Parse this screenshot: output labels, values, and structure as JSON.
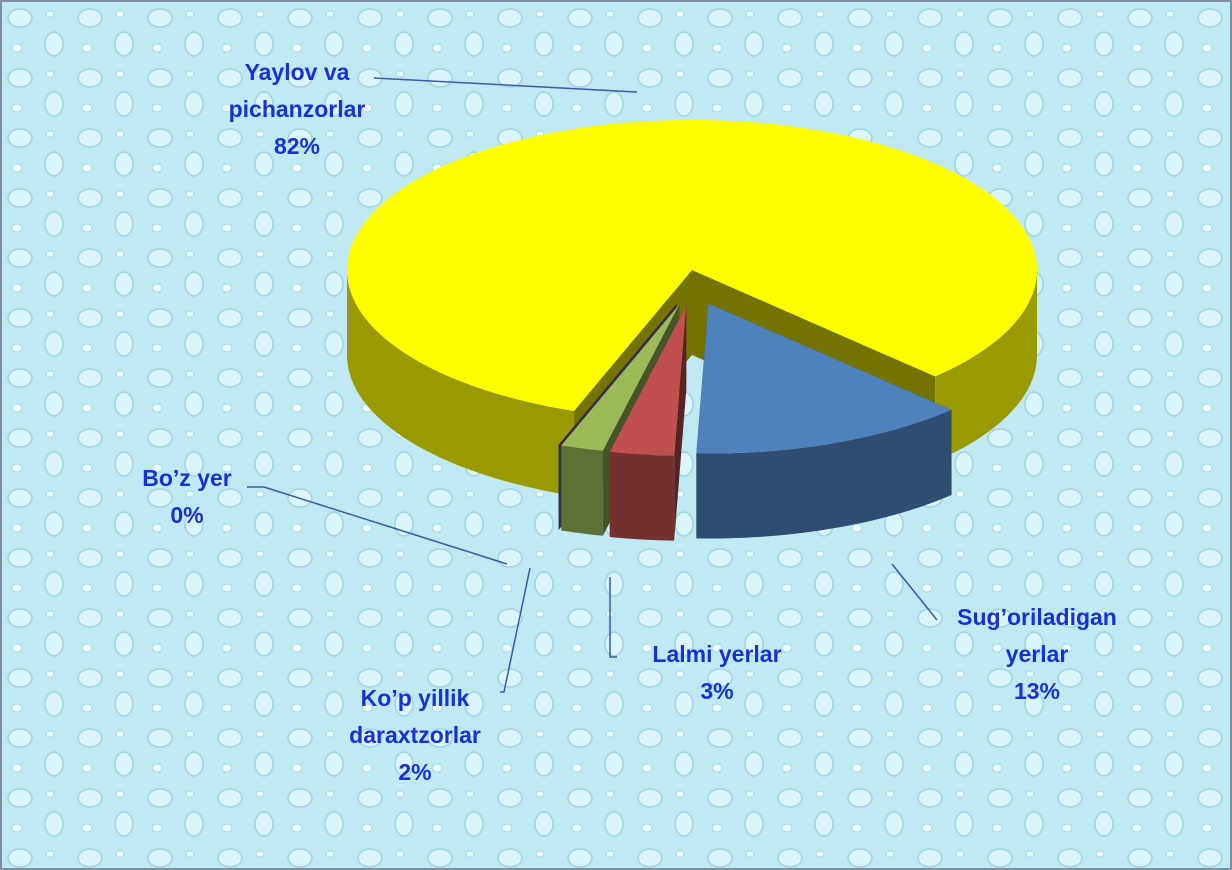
{
  "chart_data": {
    "type": "pie3d",
    "categories": [
      "Yaylov va pichanzorlar",
      "Sug’oriladigan yerlar",
      "Lalmi yerlar",
      "Ko’p yillik daraxtzorlar",
      "Bo’z yer"
    ],
    "values": [
      82,
      13,
      3,
      2,
      0
    ],
    "value_labels": [
      "82%",
      "13%",
      "3%",
      "2%",
      "0%"
    ],
    "colors": [
      "#ffff00",
      "#4f81bd",
      "#c0504d",
      "#9bbb59",
      "#8064a2"
    ]
  }
}
